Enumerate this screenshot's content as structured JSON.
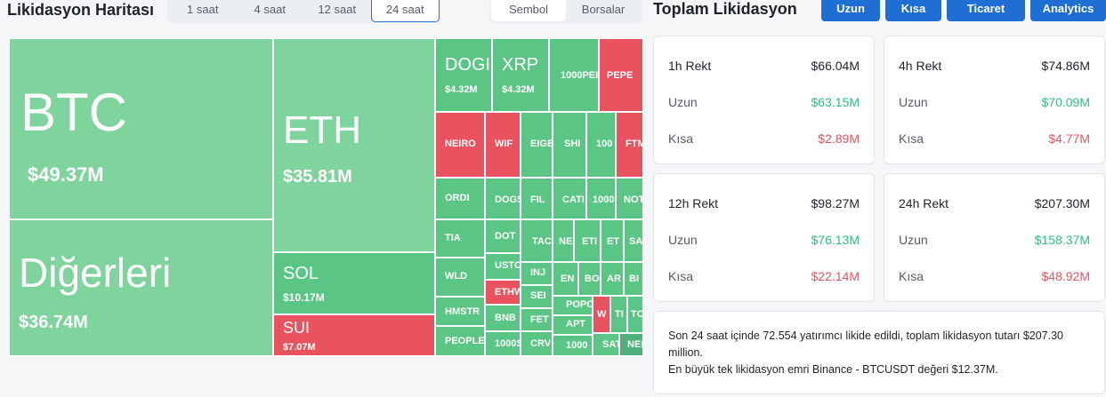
{
  "header": {
    "map_title": "Likidasyon Haritası",
    "time_tabs": [
      "1 saat",
      "4 saat",
      "12 saat",
      "24 saat"
    ],
    "active_time_tab": "24 saat",
    "mode_tabs": [
      "Sembol",
      "Borsalar"
    ],
    "active_mode_tab": "Sembol",
    "total_title": "Toplam Likidasyon",
    "buttons": [
      "Uzun",
      "Kısa",
      "Ticaret",
      "Analytics"
    ]
  },
  "treemap": {
    "btc": {
      "symbol": "BTC",
      "value": "$49.37M"
    },
    "others": {
      "symbol": "Diğerleri",
      "value": "$36.74M"
    },
    "eth": {
      "symbol": "ETH",
      "value": "$35.81M"
    },
    "sol": {
      "symbol": "SOL",
      "value": "$10.17M"
    },
    "sui": {
      "symbol": "SUI",
      "value": "$7.07M"
    },
    "doge": {
      "symbol": "DOGI",
      "value": "$4.32M"
    },
    "xrp": {
      "symbol": "XRP",
      "value": "$4.32M"
    },
    "pepe1000": "1000PEI",
    "pepe": "PEPE",
    "neiro": "NEIRO",
    "wif": "WIF",
    "eige": "EIGE",
    "shi": "SHI",
    "x1000": "100",
    "ftm": "FTM",
    "ordi": "ORDI",
    "dogs": "DOGS",
    "fil": "FIL",
    "cati": "CATI",
    "y1000": "1000",
    "not": "NOT",
    "tia": "TIA",
    "dot": "DOT",
    "ta": "TAC",
    "ne": "NE",
    "et": "ETI",
    "et2": "ET",
    "sa": "SA",
    "wld": "WLD",
    "ustc": "USTC",
    "inj": "INJ",
    "en": "EN",
    "bo": "BO",
    "ar": "AR",
    "bi": "BI",
    "ethw": "ETHW",
    "hmstr": "HMSTR",
    "sei": "SEI",
    "popc": "POPC",
    "w": "W",
    "t1": "TI",
    "tc": "TC",
    "bnb": "BNB",
    "fet": "FET",
    "apt": "APT",
    "people": "PEOPLE",
    "s1000": "1000S",
    "crv": "CRV",
    "z1000": "1000",
    "sat": "SAT",
    "nei": "NEI"
  },
  "cards": [
    {
      "head_label": "1h Rekt",
      "head_value": "$66.04M",
      "long_label": "Uzun",
      "long_value": "$63.15M",
      "short_label": "Kısa",
      "short_value": "$2.89M"
    },
    {
      "head_label": "4h Rekt",
      "head_value": "$74.86M",
      "long_label": "Uzun",
      "long_value": "$70.09M",
      "short_label": "Kısa",
      "short_value": "$4.77M"
    },
    {
      "head_label": "12h Rekt",
      "head_value": "$98.27M",
      "long_label": "Uzun",
      "long_value": "$76.13M",
      "short_label": "Kısa",
      "short_value": "$22.14M"
    },
    {
      "head_label": "24h Rekt",
      "head_value": "$207.30M",
      "long_label": "Uzun",
      "long_value": "$158.37M",
      "short_label": "Kısa",
      "short_value": "$48.92M"
    }
  ],
  "summary": {
    "line1": "Son 24 saat içinde 72.554 yatırımcı likide edildi, toplam likidasyon tutarı $207.30 million.",
    "line2": "En büyük tek likidasyon emri Binance - BTCUSDT değeri $12.37M."
  },
  "colors": {
    "long": "#2ebd85",
    "short": "#e8535f",
    "accent": "#1f6ed4"
  }
}
